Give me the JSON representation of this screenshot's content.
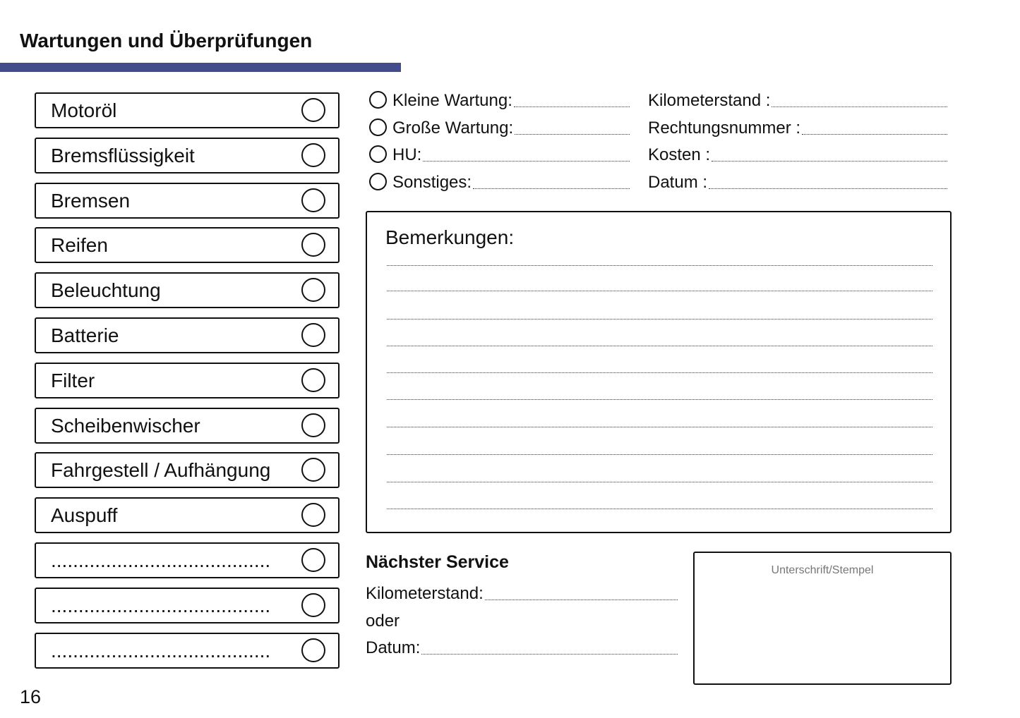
{
  "header": {
    "title": "Wartungen und Überprüfungen",
    "accent_color": "#444c8c"
  },
  "checklist": [
    "Motoröl",
    "Bremsflüssigkeit",
    "Bremsen",
    "Reifen",
    "Beleuchtung",
    "Batterie",
    "Filter",
    "Scheibenwischer",
    "Fahrgestell / Aufhängung",
    "Auspuff",
    "........................................",
    "........................................",
    "........................................"
  ],
  "service_types": [
    "Kleine Wartung:",
    "Große Wartung:",
    "HU:",
    "Sonstiges:"
  ],
  "details": [
    "Kilometerstand :",
    "Rechtungsnummer :",
    "Kosten :",
    "Datum :"
  ],
  "remarks": {
    "title": "Bemerkungen:"
  },
  "next_service": {
    "title": "Nächster Service",
    "km_label": "Kilometerstand:",
    "or_label": "oder",
    "date_label": "Datum:"
  },
  "signature": {
    "label": "Unterschrift/Stempel"
  },
  "page_number": "16"
}
